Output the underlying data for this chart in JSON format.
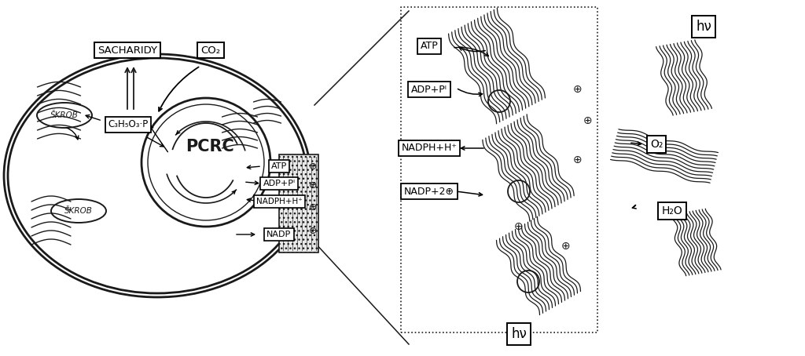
{
  "bg_color": "#ffffff",
  "line_color": "#1a1a1a",
  "figsize": [
    10.24,
    4.54
  ],
  "dpi": 100,
  "labels": {
    "sacharidy": "SACHARIDY",
    "co2": "CO₂",
    "c3": "C₃H₅O₃·P",
    "skrob1": "ŠKROB",
    "skrob2": "ŠKROB",
    "pcrc": "PCRC",
    "atp_inner": "ATP",
    "adp_inner": "ADP+Pᴵ",
    "nadph_inner": "NADPH+H⁺",
    "nadp_inner": "NADP",
    "atp_outer": "ATP",
    "adp_outer": "ADP+Pᴵ",
    "nadph_outer": "NADPH+H⁺",
    "nadp_outer": "NADP+2⊕",
    "o2": "O₂",
    "h2o": "H₂O",
    "hv_top": "hν",
    "hv_bottom": "hν"
  }
}
